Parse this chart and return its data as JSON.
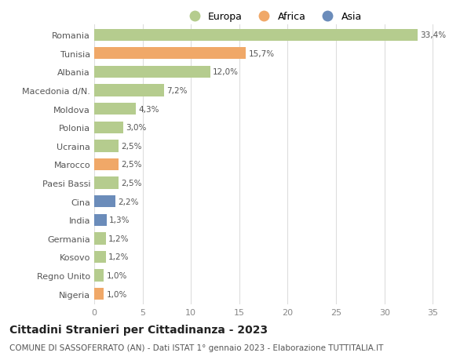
{
  "categories": [
    "Nigeria",
    "Regno Unito",
    "Kosovo",
    "Germania",
    "India",
    "Cina",
    "Paesi Bassi",
    "Marocco",
    "Ucraina",
    "Polonia",
    "Moldova",
    "Macedonia d/N.",
    "Albania",
    "Tunisia",
    "Romania"
  ],
  "values": [
    1.0,
    1.0,
    1.2,
    1.2,
    1.3,
    2.2,
    2.5,
    2.5,
    2.5,
    3.0,
    4.3,
    7.2,
    12.0,
    15.7,
    33.4
  ],
  "labels": [
    "1,0%",
    "1,0%",
    "1,2%",
    "1,2%",
    "1,3%",
    "2,2%",
    "2,5%",
    "2,5%",
    "2,5%",
    "3,0%",
    "4,3%",
    "7,2%",
    "12,0%",
    "15,7%",
    "33,4%"
  ],
  "colors": [
    "#f0a868",
    "#b5cc8e",
    "#b5cc8e",
    "#b5cc8e",
    "#6b8cba",
    "#6b8cba",
    "#b5cc8e",
    "#f0a868",
    "#b5cc8e",
    "#b5cc8e",
    "#b5cc8e",
    "#b5cc8e",
    "#b5cc8e",
    "#f0a868",
    "#b5cc8e"
  ],
  "legend_labels": [
    "Europa",
    "Africa",
    "Asia"
  ],
  "legend_colors": [
    "#b5cc8e",
    "#f0a868",
    "#6b8cba"
  ],
  "title": "Cittadini Stranieri per Cittadinanza - 2023",
  "subtitle": "COMUNE DI SASSOFERRATO (AN) - Dati ISTAT 1° gennaio 2023 - Elaborazione TUTTITALIA.IT",
  "xlim": [
    0,
    37
  ],
  "xticks": [
    0,
    5,
    10,
    15,
    20,
    25,
    30,
    35
  ],
  "background_color": "#ffffff",
  "grid_color": "#dddddd",
  "bar_height": 0.65,
  "title_fontsize": 10,
  "subtitle_fontsize": 7.5,
  "label_fontsize": 7.5,
  "tick_fontsize": 8,
  "legend_fontsize": 9
}
